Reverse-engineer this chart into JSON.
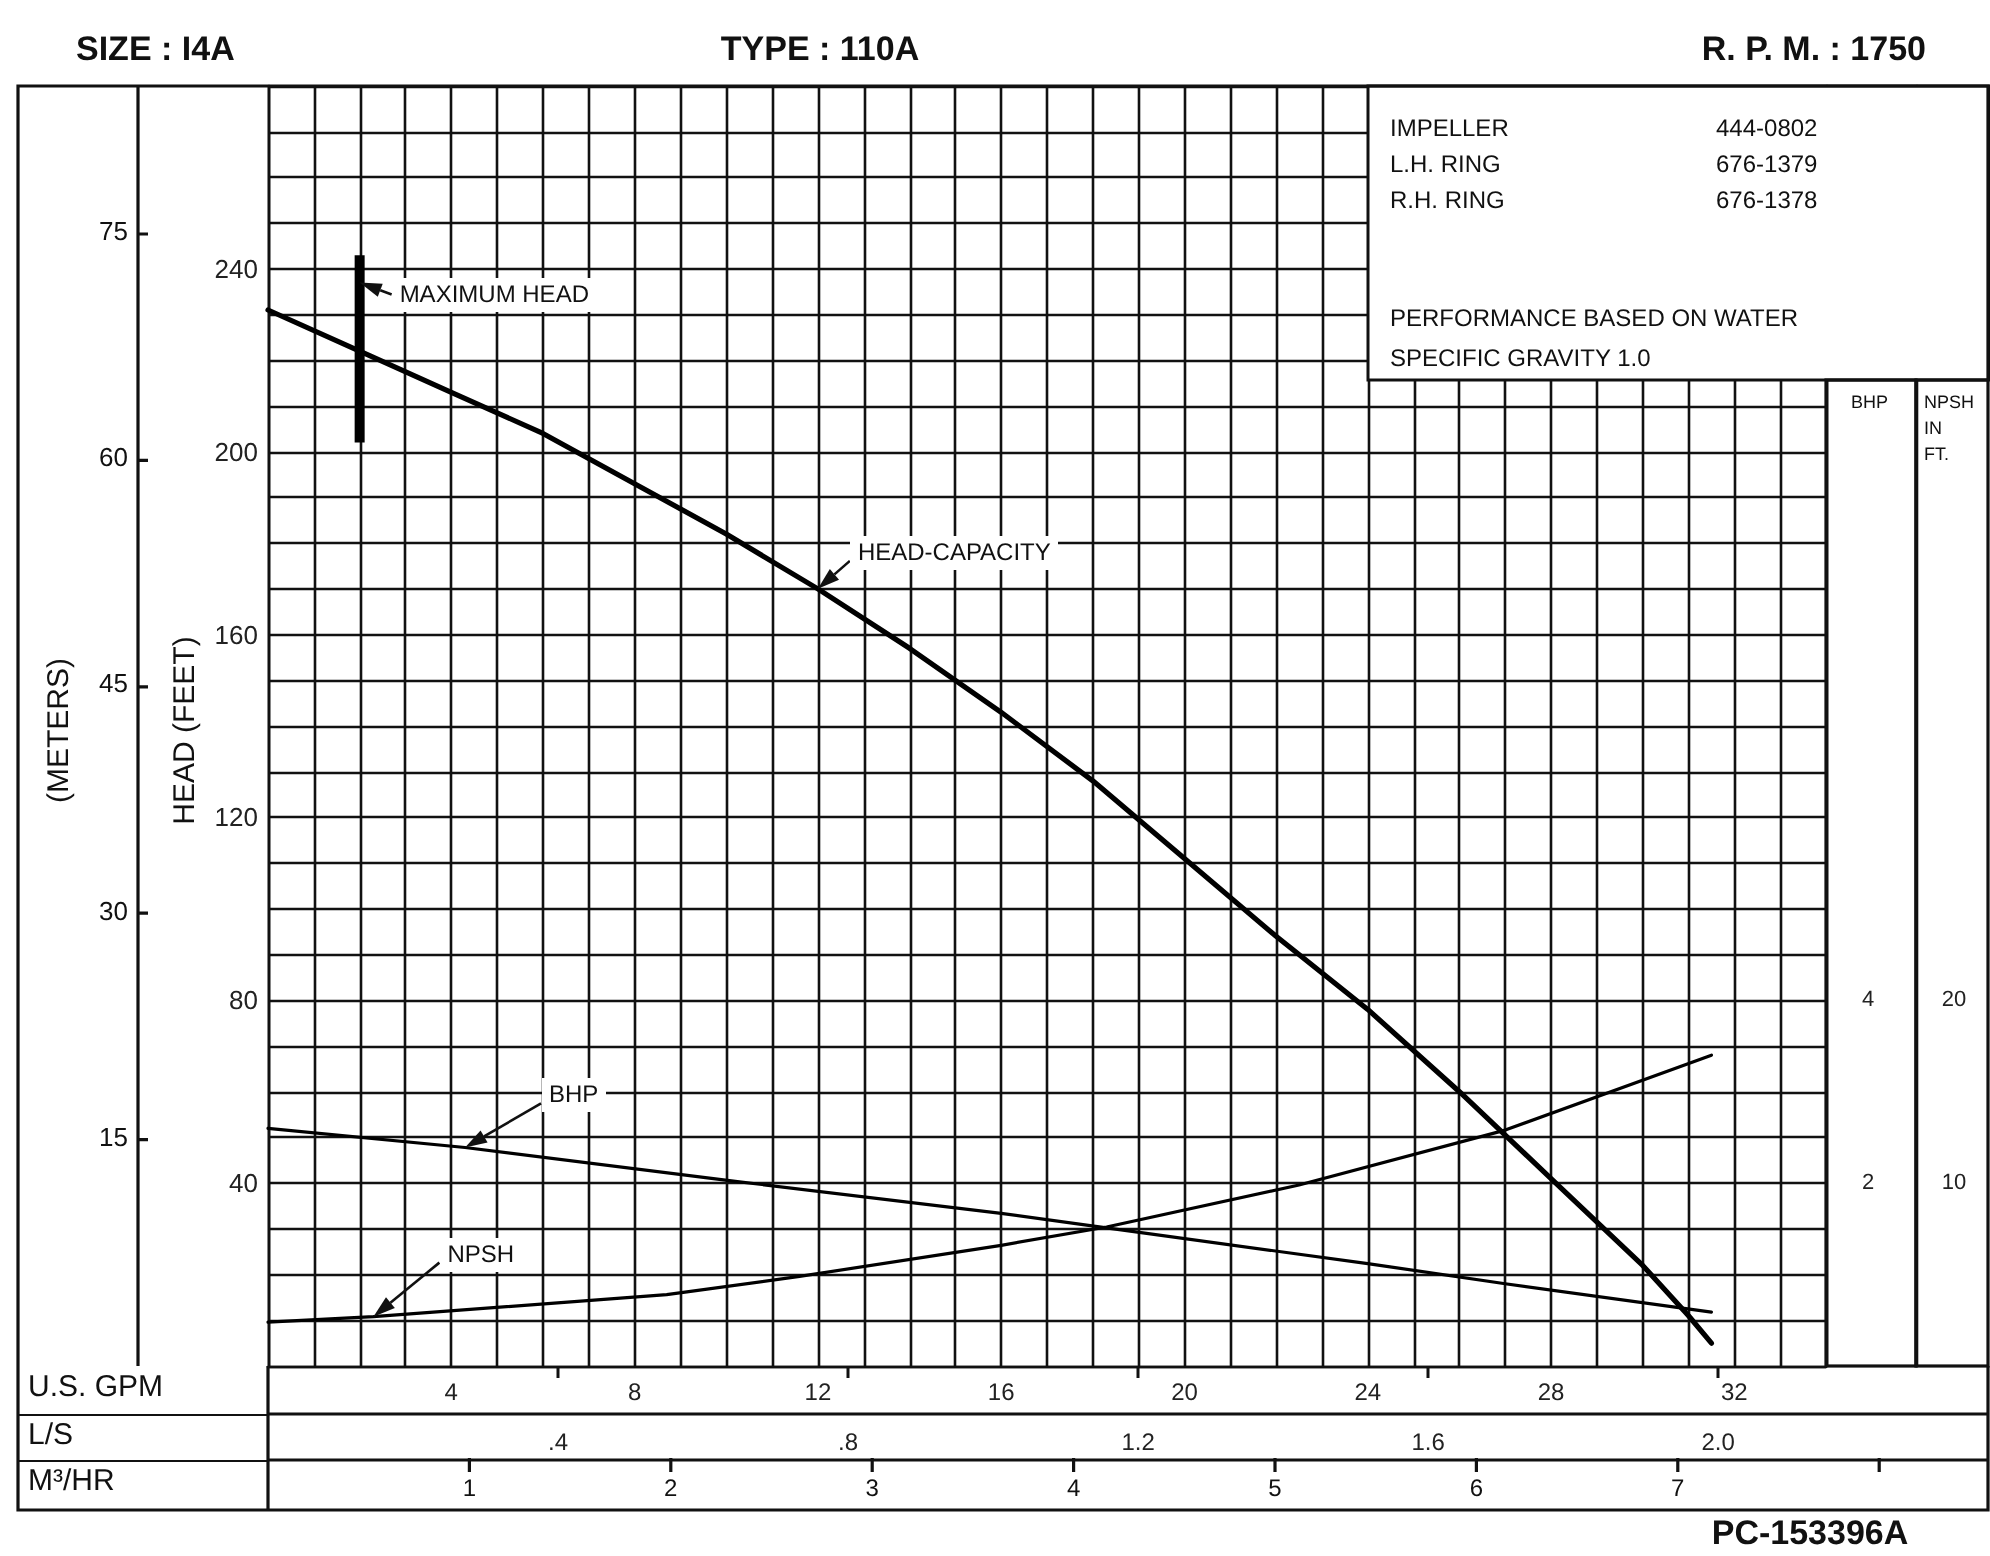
{
  "chart_data": {
    "type": "line",
    "title": "TYPE : 110A",
    "xlabel": "U.S. GPM",
    "x2label": "L/S",
    "ylabel": "HEAD (FEET)",
    "y2label": "BHP",
    "y3label": "NPSH IN FT.",
    "xlim": [
      0,
      34
    ],
    "xticks": [
      4,
      8,
      12,
      16,
      20,
      24,
      28,
      32
    ],
    "x2lim": [
      0,
      2.375
    ],
    "x2ticks": [
      {
        "value": 0.4,
        "label": ".4"
      },
      {
        "value": 0.8,
        "label": ".8"
      },
      1.2,
      1.6,
      {
        "value": 2,
        "label": "2.0"
      }
    ],
    "ylim": [
      0,
      280
    ],
    "yticks": [
      40,
      80,
      120,
      160,
      200,
      240
    ],
    "y2lim": [
      0,
      14
    ],
    "y2ticks": [
      2,
      4
    ],
    "y3lim": [
      0,
      70
    ],
    "y3ticks": [
      10,
      20
    ],
    "series": [
      {
        "name": "HEAD-CAPACITY",
        "color": "#000000",
        "x": [
          0,
          2,
          4,
          6,
          8,
          10,
          12,
          14,
          16,
          18,
          20,
          22,
          24,
          26,
          28,
          30,
          31,
          31.5
        ],
        "values": [
          231,
          222,
          213,
          204,
          193,
          182,
          170,
          157,
          143,
          128,
          111,
          94,
          78,
          60,
          41,
          22,
          11,
          5
        ]
      },
      {
        "name": "BHP",
        "color": "#000000",
        "axis": "y2",
        "x": [
          0,
          4.3,
          10.2,
          16,
          18.3,
          24,
          27,
          31.5
        ],
        "values": [
          2.6,
          2.39,
          2.02,
          1.67,
          1.51,
          1.12,
          0.9,
          0.59
        ]
      },
      {
        "name": "NPSH",
        "color": "#000000",
        "axis": "y3",
        "x": [
          0,
          2.3,
          8.7,
          11.6,
          16,
          18.3,
          22.5,
          27,
          31.5
        ],
        "values": [
          2.4,
          2.7,
          3.9,
          4.9,
          6.6,
          7.6,
          9.9,
          12.9,
          17
        ]
      },
      {
        "type": "bar",
        "color": "#000000",
        "x": [
          2
        ],
        "base": [
          202
        ],
        "values": [
          41
        ]
      }
    ],
    "annotations": [
      {
        "text": "MAXIMUM HEAD",
        "x": 2,
        "y": 237
      },
      "SIZE : I4A",
      "R. P. M. : 1750",
      "IMPELLER",
      "444-0802",
      "L.H. RING",
      "676-1379",
      "R.H. RING",
      "676-1378",
      "PERFORMANCE BASED ON WATER",
      "SPECIFIC GRAVITY 1.0",
      "PC-153396A",
      "(METERS)",
      "15",
      "30",
      "45",
      "60",
      "75",
      "M³/HR",
      "1",
      "2",
      "3",
      "4",
      "5",
      "6",
      "7"
    ],
    "grid": true,
    "legend": false,
    "marker": "none",
    "line_style": "solid"
  }
}
